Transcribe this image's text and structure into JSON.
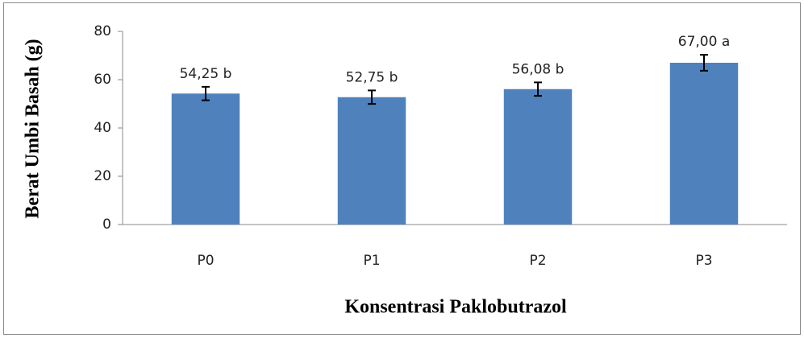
{
  "chart_data": {
    "type": "bar",
    "categories": [
      "P0",
      "P1",
      "P2",
      "P3"
    ],
    "values": [
      54.25,
      52.75,
      56.08,
      67.0
    ],
    "value_labels": [
      "54,25 b",
      "52,75 b",
      "56,08 b",
      "67,00 a"
    ],
    "errors": [
      2.8,
      2.8,
      2.8,
      3.3
    ],
    "color": "#4f81bd",
    "xlabel": "Konsentrasi Paklobutrazol",
    "ylabel": "Berat Umbi Basah (g)",
    "ylim": [
      0,
      80
    ],
    "yticks": [
      0,
      20,
      40,
      60,
      80
    ],
    "grid": false
  }
}
